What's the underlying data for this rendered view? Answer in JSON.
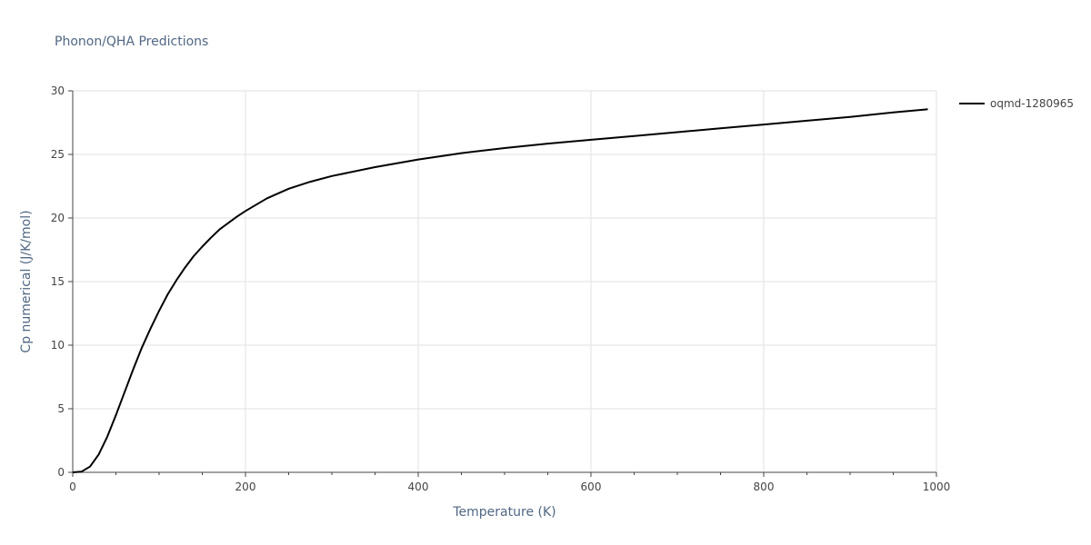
{
  "chart_data": {
    "type": "line",
    "title": "Phonon/QHA Predictions",
    "xlabel": "Temperature (K)",
    "ylabel": "Cp numerical (J/K/mol)",
    "xlim": [
      0,
      1000
    ],
    "ylim": [
      0,
      30
    ],
    "x_ticks": [
      0,
      200,
      400,
      600,
      800,
      1000
    ],
    "y_ticks": [
      0,
      5,
      10,
      15,
      20,
      25,
      30
    ],
    "grid": true,
    "legend": "top-right",
    "colors": {
      "series": "#000000",
      "grid": "#e2e2e2",
      "text": "#444444",
      "axis": "#444444",
      "title": "#506784"
    },
    "series": [
      {
        "name": "oqmd-1280965",
        "x": [
          0,
          10,
          20,
          30,
          40,
          50,
          60,
          70,
          80,
          90,
          100,
          110,
          120,
          130,
          140,
          150,
          160,
          170,
          180,
          190,
          200,
          225,
          250,
          275,
          300,
          350,
          400,
          450,
          500,
          550,
          600,
          650,
          700,
          750,
          800,
          850,
          900,
          950,
          990
        ],
        "values": [
          0,
          0.05,
          0.45,
          1.4,
          2.8,
          4.5,
          6.3,
          8.1,
          9.8,
          11.3,
          12.7,
          14.0,
          15.1,
          16.1,
          17.0,
          17.75,
          18.45,
          19.1,
          19.6,
          20.1,
          20.55,
          21.55,
          22.3,
          22.85,
          23.3,
          24.0,
          24.6,
          25.1,
          25.5,
          25.85,
          26.15,
          26.45,
          26.75,
          27.05,
          27.35,
          27.65,
          27.95,
          28.3,
          28.55
        ]
      }
    ]
  }
}
